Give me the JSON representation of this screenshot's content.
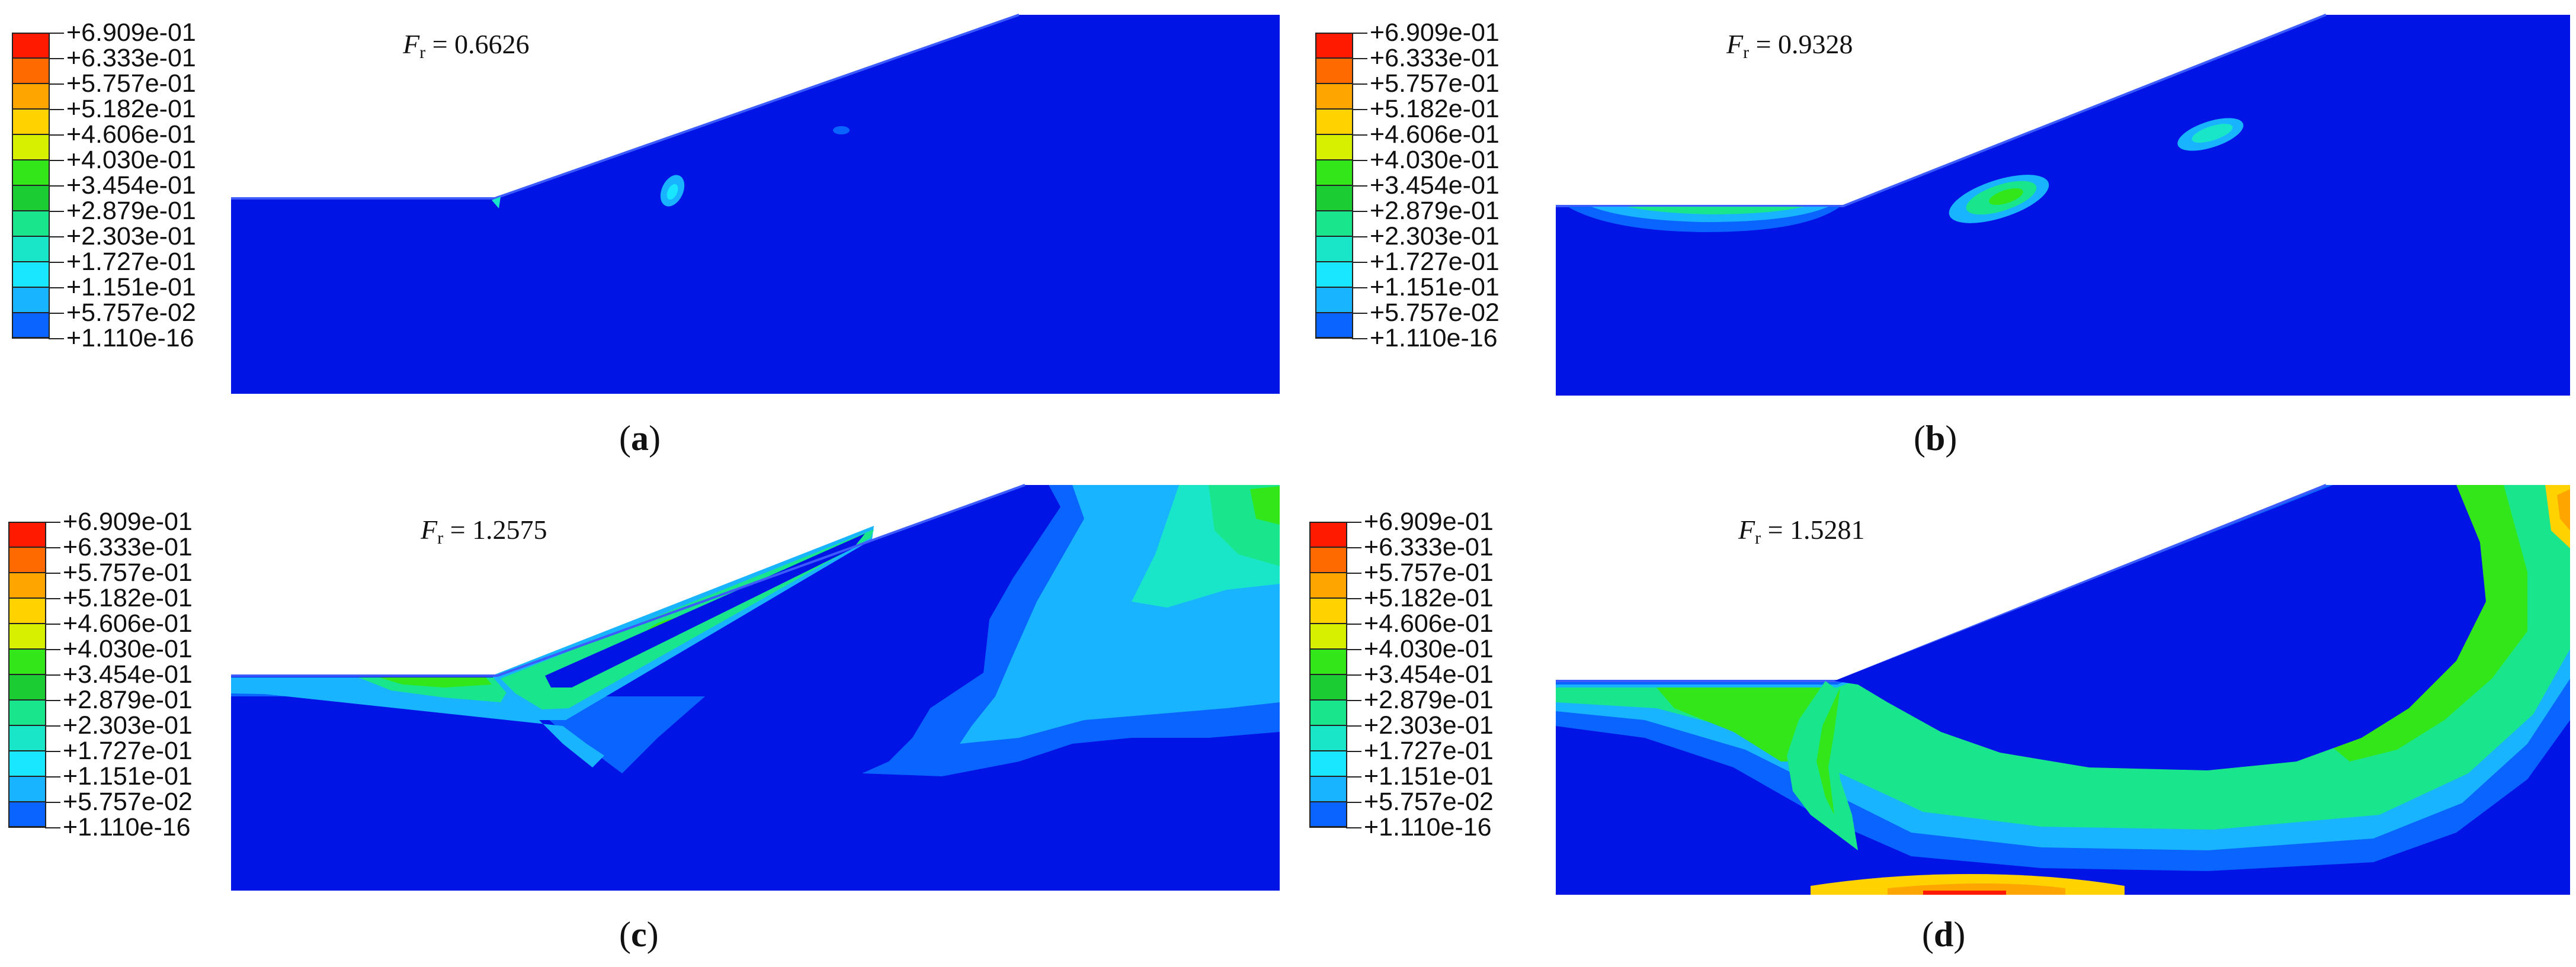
{
  "legend": {
    "labels": [
      "+6.909e-01",
      "+6.333e-01",
      "+5.757e-01",
      "+5.182e-01",
      "+4.606e-01",
      "+4.030e-01",
      "+3.454e-01",
      "+2.879e-01",
      "+2.303e-01",
      "+1.727e-01",
      "+1.151e-01",
      "+5.757e-02",
      "+1.110e-16"
    ],
    "colors": [
      "#ff1a00",
      "#ff6a00",
      "#ffa500",
      "#ffd200",
      "#d7f000",
      "#33e61a",
      "#1ccc33",
      "#19e68c",
      "#19e6c8",
      "#19e6ff",
      "#19b4ff",
      "#0a64ff",
      "#0014e6"
    ]
  },
  "panels": [
    {
      "fr_symbol": "F",
      "fr_sub": "r",
      "fr_text": " = 0.6626",
      "label": "a"
    },
    {
      "fr_symbol": "F",
      "fr_sub": "r",
      "fr_text": " = 0.9328",
      "label": "b"
    },
    {
      "fr_symbol": "F",
      "fr_sub": "r",
      "fr_text": " = 1.2575",
      "label": "c"
    },
    {
      "fr_symbol": "F",
      "fr_sub": "r",
      "fr_text": " = 1.5281",
      "label": "d"
    }
  ]
}
